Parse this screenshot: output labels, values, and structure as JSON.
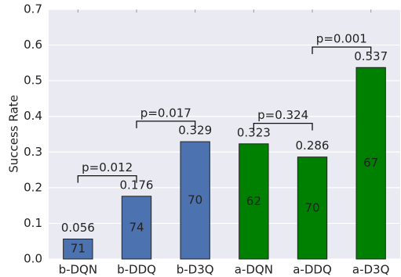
{
  "chart_data": {
    "type": "bar",
    "y_label": "Success Rate",
    "categories": [
      "b-DQN",
      "b-DDQ",
      "b-D3Q",
      "a-DQN",
      "a-DDQ",
      "a-D3Q"
    ],
    "values": [
      0.056,
      0.176,
      0.329,
      0.323,
      0.286,
      0.537
    ],
    "colors": [
      "#4c72b0",
      "#4c72b0",
      "#4c72b0",
      "#008000",
      "#008000",
      "#008000"
    ],
    "bar_labels": [
      "71",
      "74",
      "70",
      "62",
      "70",
      "67"
    ],
    "ylim": [
      0,
      0.7
    ],
    "yticks": [
      {
        "value": 0,
        "label": "0.0"
      },
      0.1,
      0.2,
      0.3,
      0.4,
      0.5,
      0.6,
      0.7
    ],
    "grid": true,
    "annotations": [
      {
        "text": "p=0.012",
        "from": "b-DQN",
        "to": "b-DDQ"
      },
      {
        "text": "p=0.017",
        "from": "b-DDQ",
        "to": "b-D3Q"
      },
      {
        "text": "p=0.324",
        "from": "a-DQN",
        "to": "a-DDQ"
      },
      {
        "text": "p=0.001",
        "from": "a-DDQ",
        "to": "a-D3Q"
      }
    ]
  }
}
